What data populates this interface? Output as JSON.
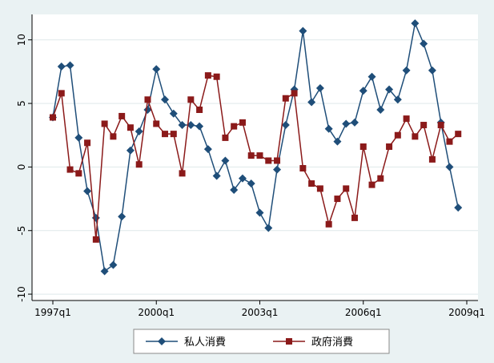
{
  "chart_data": {
    "type": "line",
    "title": "",
    "xlabel": "",
    "ylabel": "",
    "x_tick_labels": [
      "1997q1",
      "2000q1",
      "2003q1",
      "2006q1",
      "2009q1"
    ],
    "y_tick_labels": [
      "10",
      "5",
      "0",
      "-5",
      "-10"
    ],
    "ylim": [
      -10.5,
      12
    ],
    "grid": true,
    "legend_position": "bottom",
    "x": [
      "1997q1",
      "1997q2",
      "1997q3",
      "1997q4",
      "1998q1",
      "1998q2",
      "1998q3",
      "1998q4",
      "1999q1",
      "1999q2",
      "1999q3",
      "1999q4",
      "2000q1",
      "2000q2",
      "2000q3",
      "2000q4",
      "2001q1",
      "2001q2",
      "2001q3",
      "2001q4",
      "2002q1",
      "2002q2",
      "2002q3",
      "2002q4",
      "2003q1",
      "2003q2",
      "2003q3",
      "2003q4",
      "2004q1",
      "2004q2",
      "2004q3",
      "2004q4",
      "2005q1",
      "2005q2",
      "2005q3",
      "2005q4",
      "2006q1",
      "2006q2",
      "2006q3",
      "2006q4",
      "2007q1",
      "2007q2",
      "2007q3",
      "2007q4",
      "2008q1",
      "2008q2",
      "2008q3",
      "2008q4"
    ],
    "series": [
      {
        "name": "私人消費",
        "color": "#1f4e79",
        "marker": "diamond",
        "values": [
          3.9,
          7.9,
          8.0,
          2.3,
          -1.9,
          -4.0,
          -8.2,
          -7.7,
          -3.9,
          1.3,
          2.8,
          4.5,
          7.7,
          5.3,
          4.2,
          3.3,
          3.3,
          3.2,
          1.4,
          -0.7,
          0.5,
          -1.8,
          -0.9,
          -1.3,
          -3.6,
          -4.8,
          -0.2,
          3.3,
          6.1,
          10.7,
          5.1,
          6.2,
          3.0,
          2.0,
          3.4,
          3.5,
          6.0,
          7.1,
          4.5,
          6.1,
          5.3,
          7.6,
          11.3,
          9.7,
          7.6,
          3.5,
          0.0,
          -3.2
        ]
      },
      {
        "name": "政府消費",
        "color": "#8b1a1a",
        "marker": "square",
        "values": [
          3.9,
          5.8,
          -0.2,
          -0.5,
          1.9,
          -5.7,
          3.4,
          2.4,
          4.0,
          3.1,
          0.2,
          5.3,
          3.4,
          2.6,
          2.6,
          -0.5,
          5.3,
          4.5,
          7.2,
          7.1,
          2.3,
          3.2,
          3.5,
          0.9,
          0.9,
          0.5,
          0.5,
          5.4,
          5.8,
          -0.1,
          -1.3,
          -1.7,
          -4.5,
          -2.5,
          -1.7,
          -4.0,
          1.6,
          -1.4,
          -0.9,
          1.6,
          2.5,
          3.8,
          2.4,
          3.3,
          0.6,
          3.3,
          2.0,
          2.6
        ]
      }
    ]
  }
}
